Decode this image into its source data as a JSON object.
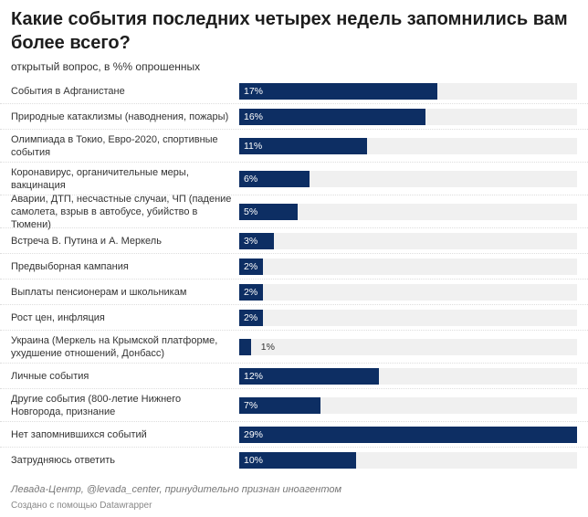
{
  "title": "Какие события последних четырех недель запомнились вам более всего?",
  "subtitle": "открытый вопрос, в %% опрошенных",
  "source": "Левада-Центр, @levada_center, принудительно признан иноагентом",
  "credit": "Создано с помощью Datawrapper",
  "chart_data": {
    "type": "bar",
    "orientation": "horizontal",
    "title": "Какие события последних четырех недель запомнились вам более всего?",
    "subtitle": "открытый вопрос, в %% опрошенных",
    "bar_color": "#0d2e63",
    "track_color": "#f0f0f0",
    "xlim": [
      0,
      29
    ],
    "categories": [
      "События в Афганистане",
      "Природные катаклизмы (наводнения, пожары)",
      "Олимпиада в Токио, Евро-2020, спортивные события",
      "Коронавирус, органичительные меры, вакцинация",
      "Аварии, ДТП, несчастные случаи, ЧП (падение самолета, взрыв в автобусе, убийство в Тюмени)",
      "Встреча В. Путина и А. Меркель",
      "Предвыборная кампания",
      "Выплаты пенсионерам и школьникам",
      "Рост цен, инфляция",
      "Украина (Меркель на Крымской платформе, ухудшение отношений, Донбасс)",
      "Личные события",
      "Другие события (800-летие Нижнего Новгорода, признание",
      "Нет запомнившихся событий",
      "Затрудняюсь ответить"
    ],
    "values": [
      17,
      16,
      11,
      6,
      5,
      3,
      2,
      2,
      2,
      1,
      12,
      7,
      29,
      10
    ],
    "labels": [
      "17%",
      "16%",
      "11%",
      "6%",
      "5%",
      "3%",
      "2%",
      "2%",
      "2%",
      "1%",
      "12%",
      "7%",
      "29%",
      "10%"
    ]
  }
}
